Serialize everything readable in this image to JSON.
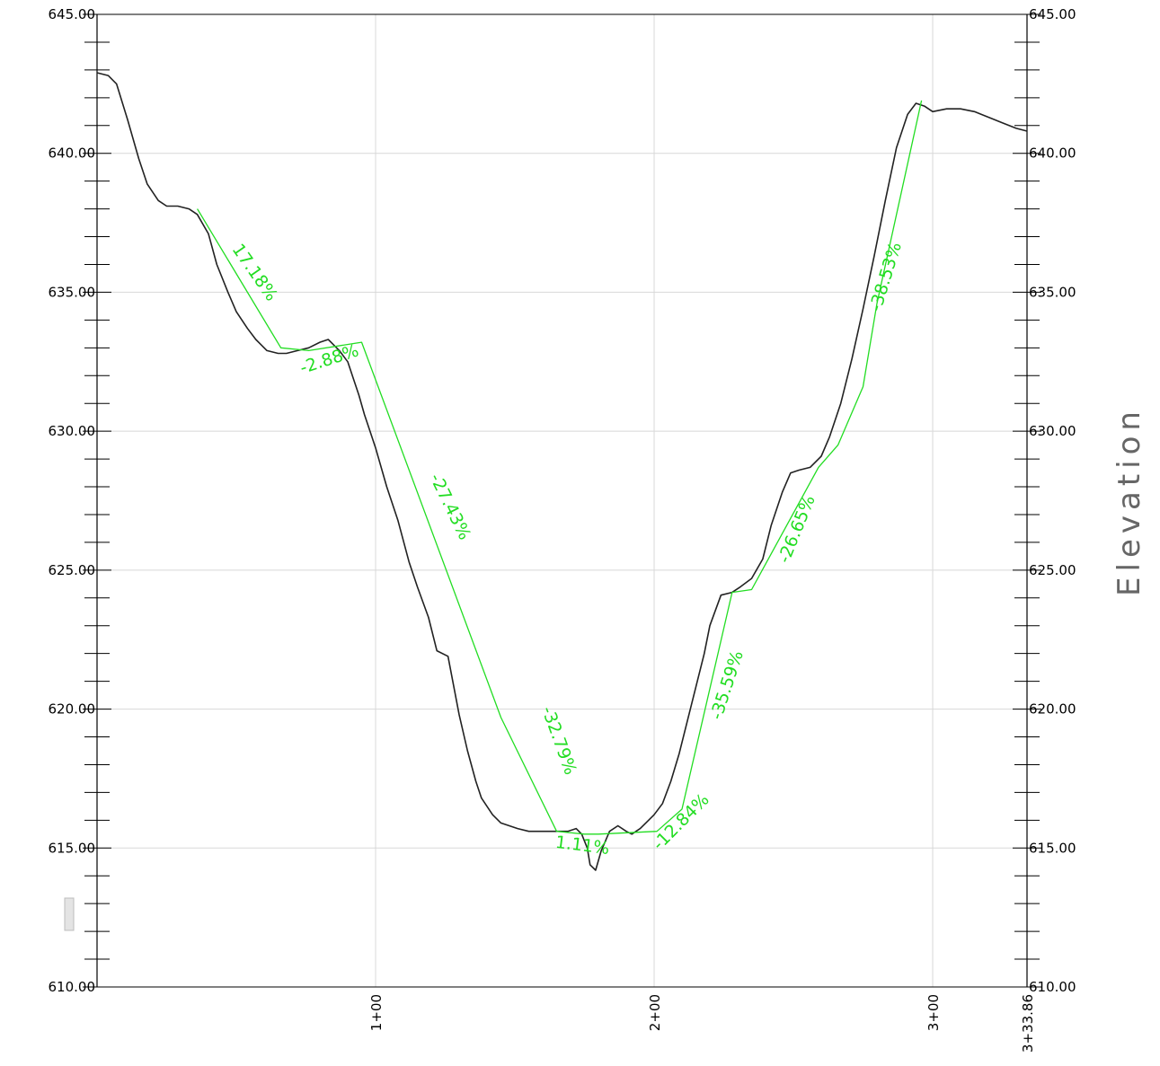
{
  "chart_data": {
    "type": "line",
    "title": "",
    "xlabel": "",
    "ylabel": "Elevation",
    "xlim": [
      0,
      333.86
    ],
    "ylim": [
      610,
      645
    ],
    "y_ticks": [
      "610.00",
      "615.00",
      "620.00",
      "625.00",
      "630.00",
      "635.00",
      "640.00",
      "645.00"
    ],
    "y_tick_values": [
      610,
      615,
      620,
      625,
      630,
      635,
      640,
      645
    ],
    "y_ticks_right": [
      "610.00",
      "615.00",
      "620.00",
      "625.00",
      "630.00",
      "635.00",
      "640.00",
      "645.00"
    ],
    "x_ticks": [
      "1+00",
      "2+00",
      "3+00",
      "3+33.86"
    ],
    "x_tick_values": [
      100,
      200,
      300,
      333.86
    ],
    "grid": true,
    "colors": {
      "ground": "#222222",
      "grade": "#22dd22",
      "grid": "#d8d8d8"
    },
    "series": [
      {
        "type": "ground",
        "x": [
          0,
          4,
          7,
          11,
          15,
          18,
          22,
          25,
          29,
          33,
          36,
          40,
          43,
          47,
          50,
          54,
          57,
          61,
          65,
          68,
          72,
          76,
          80,
          83,
          87,
          90,
          92,
          94,
          96,
          98,
          100,
          104,
          108,
          112,
          115,
          119,
          122,
          126,
          130,
          133,
          136,
          138,
          142,
          145,
          148,
          151,
          155,
          158,
          162,
          166,
          169,
          172,
          174,
          176,
          177,
          179,
          181,
          184,
          187,
          190,
          192,
          195,
          197,
          200,
          203,
          206,
          209,
          212,
          215,
          218,
          220,
          224,
          228,
          231,
          235,
          239,
          242,
          246,
          249,
          252,
          256,
          260,
          263,
          267,
          271,
          275,
          279,
          283,
          287,
          291,
          294,
          297,
          300,
          305,
          310,
          315,
          320,
          325,
          330,
          333.86
        ],
        "y": [
          642.9,
          642.8,
          642.5,
          641.2,
          639.8,
          638.9,
          638.3,
          638.1,
          638.1,
          638.0,
          637.8,
          637.1,
          636.0,
          635.0,
          634.3,
          633.7,
          633.3,
          632.9,
          632.8,
          632.8,
          632.9,
          633.0,
          633.2,
          633.3,
          632.9,
          632.5,
          631.9,
          631.3,
          630.6,
          630.0,
          629.4,
          628.0,
          626.8,
          625.3,
          624.4,
          623.3,
          622.1,
          621.9,
          619.8,
          618.5,
          617.4,
          616.8,
          616.2,
          615.9,
          615.8,
          615.7,
          615.6,
          615.6,
          615.6,
          615.6,
          615.6,
          615.7,
          615.5,
          615.0,
          614.4,
          614.2,
          614.9,
          615.6,
          615.8,
          615.6,
          615.5,
          615.7,
          615.9,
          616.2,
          616.6,
          617.4,
          618.4,
          619.6,
          620.8,
          622.0,
          623.0,
          624.1,
          624.2,
          624.4,
          624.7,
          625.4,
          626.6,
          627.8,
          628.5,
          628.6,
          628.7,
          629.1,
          629.8,
          631.0,
          632.6,
          634.4,
          636.3,
          638.3,
          640.2,
          641.4,
          641.8,
          641.7,
          641.5,
          641.6,
          641.6,
          641.5,
          641.3,
          641.1,
          640.9,
          640.8
        ]
      },
      {
        "type": "grade-segments",
        "x": [
          36,
          66,
          76,
          95,
          145,
          165,
          175,
          180,
          201,
          210,
          228,
          235,
          259,
          266,
          275,
          280,
          296
        ],
        "y": [
          638.0,
          633.0,
          632.9,
          633.2,
          619.7,
          615.6,
          615.5,
          615.5,
          615.6,
          616.4,
          624.2,
          624.3,
          628.7,
          629.5,
          631.6,
          634.6,
          641.9
        ]
      }
    ],
    "annotations": [
      {
        "text": "17.18%",
        "x": 55,
        "y": 635.6,
        "angle": 55
      },
      {
        "text": "-2.88%",
        "x": 84,
        "y": 632.4,
        "angle": -18
      },
      {
        "text": "-27.43%",
        "x": 125,
        "y": 627.2,
        "angle": 64
      },
      {
        "text": "-32.79%",
        "x": 164,
        "y": 618.8,
        "angle": 70
      },
      {
        "text": "1.11%",
        "x": 174,
        "y": 614.9,
        "angle": 7
      },
      {
        "text": "-12.84%",
        "x": 211,
        "y": 615.8,
        "angle": -45
      },
      {
        "text": "-35.59%",
        "x": 228,
        "y": 620.8,
        "angle": -72
      },
      {
        "text": "-26.65%",
        "x": 253,
        "y": 626.4,
        "angle": -68
      },
      {
        "text": "-38.53%",
        "x": 285,
        "y": 635.5,
        "angle": -73
      }
    ],
    "scrollbar_marker": true
  }
}
